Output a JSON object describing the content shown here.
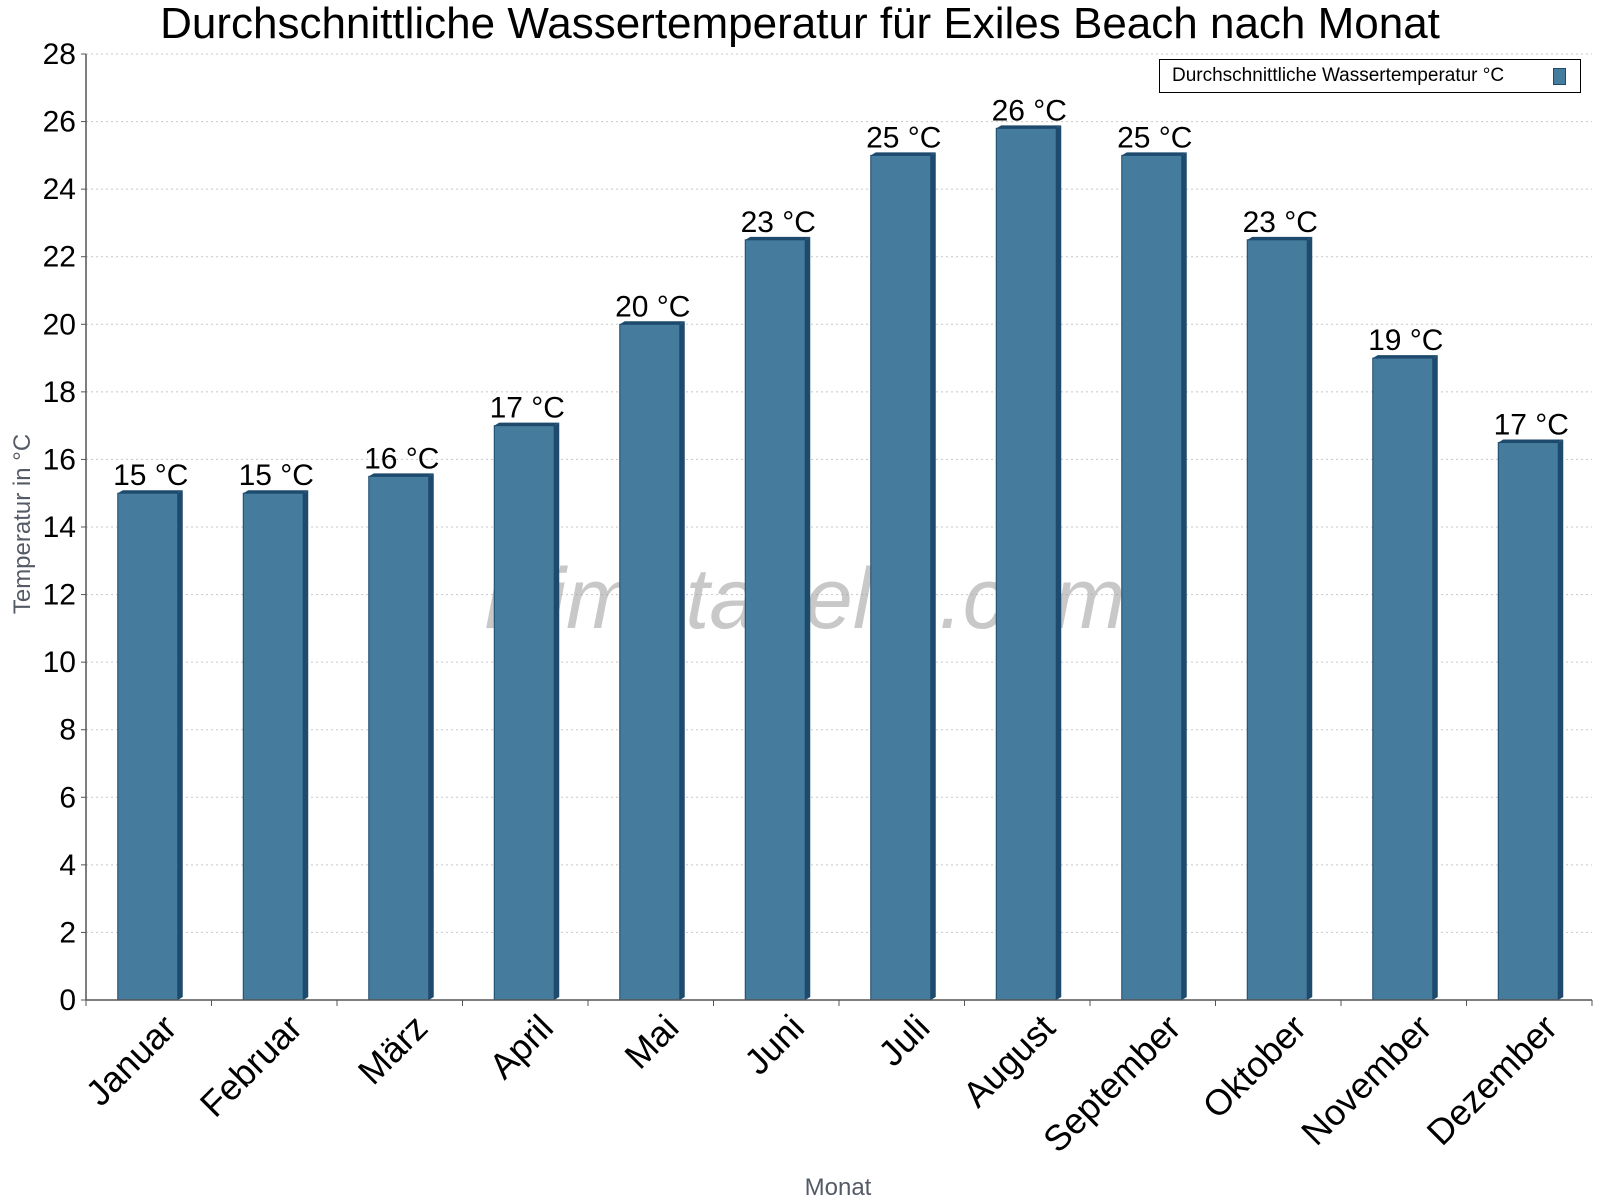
{
  "chart_data": {
    "type": "bar",
    "title": "Durchschnittliche Wassertemperatur für Exiles Beach nach Monat",
    "xlabel": "Monat",
    "ylabel": "Temperatur in °C",
    "ylim": [
      0,
      28
    ],
    "yticks": [
      0,
      2,
      4,
      6,
      8,
      10,
      12,
      14,
      16,
      18,
      20,
      22,
      24,
      26,
      28
    ],
    "grid": true,
    "legend_position": "top-right",
    "categories": [
      "Januar",
      "Februar",
      "März",
      "April",
      "Mai",
      "Juni",
      "Juli",
      "August",
      "September",
      "Oktober",
      "November",
      "Dezember"
    ],
    "series": [
      {
        "name": "Durchschnittliche Wassertemperatur °C",
        "values": [
          15,
          15,
          15.5,
          17,
          20,
          22.5,
          25,
          25.8,
          25,
          22.5,
          19,
          16.5
        ],
        "labels": [
          "15 °C",
          "15 °C",
          "16 °C",
          "17 °C",
          "20 °C",
          "23 °C",
          "25 °C",
          "26 °C",
          "25 °C",
          "23 °C",
          "19 °C",
          "17 °C"
        ],
        "color": "#457b9d",
        "edge_color": "#1d4a6d"
      }
    ],
    "watermark": "klimatabelle.com"
  }
}
